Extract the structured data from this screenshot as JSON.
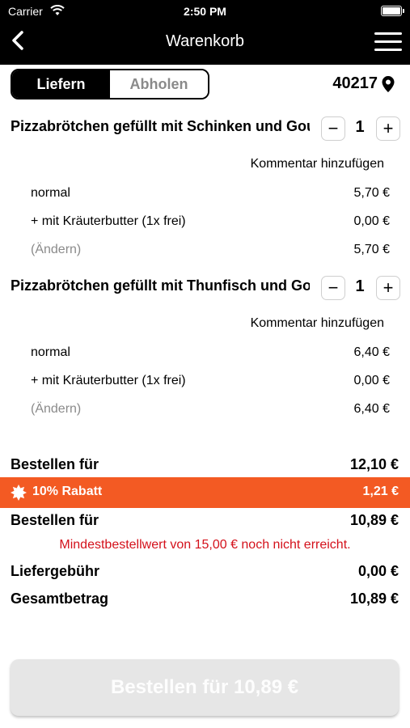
{
  "status_bar": {
    "carrier": "Carrier",
    "time": "2:50 PM"
  },
  "header": {
    "title": "Warenkorb"
  },
  "mode": {
    "deliver_label": "Liefern",
    "pickup_label": "Abholen",
    "active": "Liefern"
  },
  "location": {
    "zip": "40217"
  },
  "items": [
    {
      "name": "Pizzabrötchen gefüllt mit Schinken und Gouda",
      "qty": "1",
      "comment_label": "Kommentar hinzufügen",
      "size_label": "normal",
      "size_price": "5,70 €",
      "extra_label": "+ mit Kräuterbutter (1x frei)",
      "extra_price": "0,00 €",
      "change_label": "(Ändern)",
      "total_price": "5,70 €"
    },
    {
      "name": "Pizzabrötchen gefüllt mit Thunfisch und Gouda",
      "qty": "1",
      "comment_label": "Kommentar hinzufügen",
      "size_label": "normal",
      "size_price": "6,40 €",
      "extra_label": "+ mit Kräuterbutter (1x frei)",
      "extra_price": "0,00 €",
      "change_label": "(Ändern)",
      "total_price": "6,40 €"
    }
  ],
  "summary": {
    "subtotal_label": "Bestellen für",
    "subtotal_value": "12,10 €",
    "discount_label": "10% Rabatt",
    "discount_value": "1,21 €",
    "after_discount_label": "Bestellen für",
    "after_discount_value": "10,89 €",
    "warning": "Mindestbestellwert von 15,00 € noch nicht erreicht.",
    "delivery_fee_label": "Liefergebühr",
    "delivery_fee_value": "0,00 €",
    "total_label": "Gesamtbetrag",
    "total_value": "10,89 €"
  },
  "order_button": {
    "label": "Bestellen für 10,89 €"
  },
  "colors": {
    "discount": "#f35a23",
    "warning": "#d4111b",
    "header": "#000000",
    "button_disabled": "#e6e6e6"
  }
}
